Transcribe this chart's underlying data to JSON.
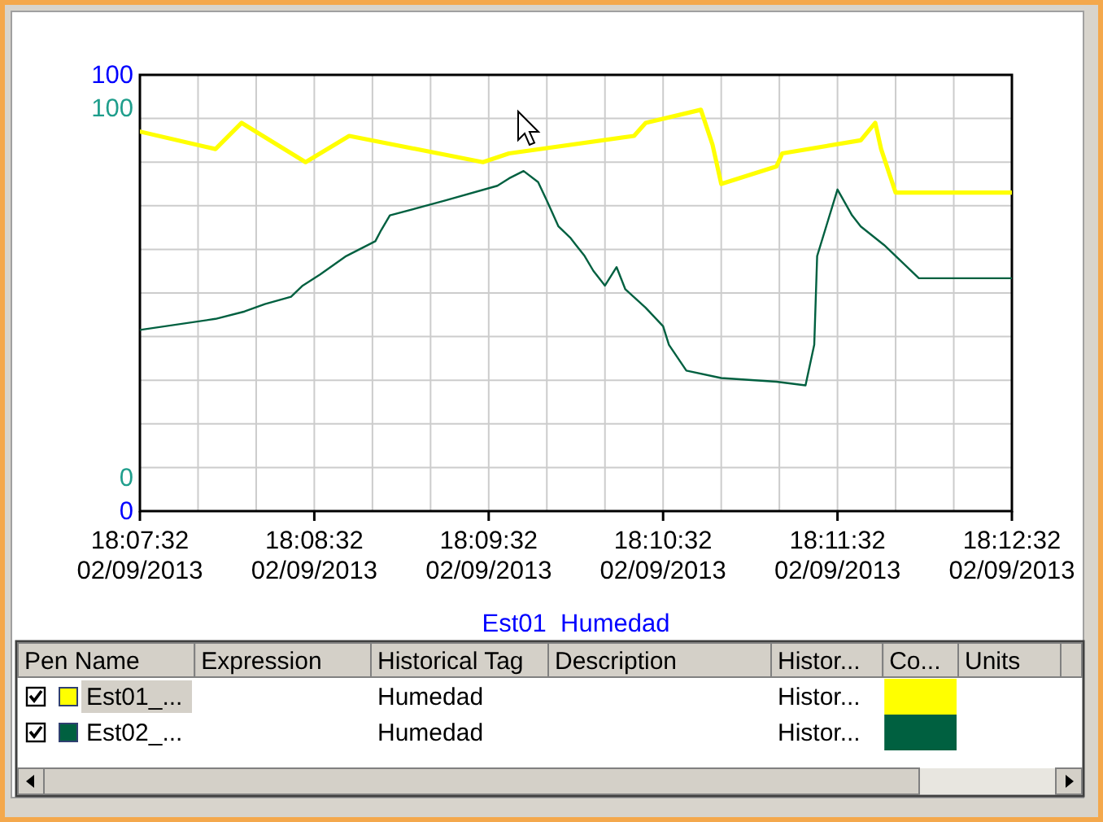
{
  "chart_data": {
    "type": "line",
    "xlim": [
      "2013-09-02T18:07:32",
      "2013-09-02T18:12:32"
    ],
    "xticks": [
      {
        "value": "2013-09-02T18:07:32",
        "label": "18:07:32\n02/09/2013"
      },
      {
        "value": "2013-09-02T18:07:52",
        "label": null
      },
      {
        "value": "2013-09-02T18:08:12",
        "label": null
      },
      {
        "value": "2013-09-02T18:08:32",
        "label": "18:08:32\n02/09/2013"
      },
      {
        "value": "2013-09-02T18:08:52",
        "label": null
      },
      {
        "value": "2013-09-02T18:09:12",
        "label": null
      },
      {
        "value": "2013-09-02T18:09:32",
        "label": "18:09:32\n02/09/2013"
      },
      {
        "value": "2013-09-02T18:09:52",
        "label": null
      },
      {
        "value": "2013-09-02T18:10:12",
        "label": null
      },
      {
        "value": "2013-09-02T18:10:32",
        "label": "18:10:32\n02/09/2013"
      },
      {
        "value": "2013-09-02T18:10:52",
        "label": null
      },
      {
        "value": "2013-09-02T18:11:12",
        "label": null
      },
      {
        "value": "2013-09-02T18:11:32",
        "label": "18:11:32\n02/09/2013"
      },
      {
        "value": "2013-09-02T18:11:52",
        "label": null
      },
      {
        "value": "2013-09-02T18:12:12",
        "label": null
      },
      {
        "value": "2013-09-02T18:12:32",
        "label": "18:12:32\n02/09/2013"
      }
    ],
    "ylim": [
      0,
      100
    ],
    "yticks": [
      0,
      {
        "value": 10,
        "label": null
      },
      {
        "value": 20,
        "label": null
      },
      {
        "value": 30,
        "label": null
      },
      {
        "value": 40,
        "label": null
      },
      {
        "value": 50,
        "label": null
      },
      {
        "value": 60,
        "label": null
      },
      {
        "value": 70,
        "label": null
      },
      {
        "value": 80,
        "label": null
      },
      {
        "value": 90,
        "label": null
      },
      100
    ],
    "y2lim": [
      -9,
      109
    ],
    "y2ticks": [
      0,
      100
    ],
    "grid": true,
    "legend": "bottom",
    "annotations": [
      "Est01  Humedad",
      "Pen Name",
      "Expression",
      "Historical Tag",
      "Description",
      "Histor...",
      "Co...",
      "Units",
      "Humedad",
      "Histor...",
      "Humedad",
      "Histor..."
    ],
    "series": [
      {
        "name": "Est01_...",
        "color": "#ffff00",
        "x": [
          "2013-09-02T18:07:32",
          "2013-09-02T18:07:58",
          "2013-09-02T18:08:07",
          "2013-09-02T18:08:29",
          "2013-09-02T18:08:44",
          "2013-09-02T18:09:30",
          "2013-09-02T18:09:39",
          "2013-09-02T18:10:22",
          "2013-09-02T18:10:26",
          "2013-09-02T18:10:45",
          "2013-09-02T18:10:49",
          "2013-09-02T18:10:52",
          "2013-09-02T18:11:11",
          "2013-09-02T18:11:13",
          "2013-09-02T18:11:40",
          "2013-09-02T18:11:45",
          "2013-09-02T18:11:47",
          "2013-09-02T18:11:52",
          "2013-09-02T18:12:32"
        ],
        "values": [
          87,
          83,
          89,
          80,
          86,
          80,
          82,
          86,
          89,
          92,
          84,
          75,
          79,
          82,
          85,
          89,
          83,
          73,
          73
        ]
      },
      {
        "name": "Est02_...",
        "color": "#006040",
        "axis": "y2",
        "x": [
          "2013-09-02T18:07:32",
          "2013-09-02T18:07:58",
          "2013-09-02T18:08:08",
          "2013-09-02T18:08:15",
          "2013-09-02T18:08:24",
          "2013-09-02T18:08:28",
          "2013-09-02T18:08:34",
          "2013-09-02T18:08:43",
          "2013-09-02T18:08:53",
          "2013-09-02T18:08:55",
          "2013-09-02T18:08:58",
          "2013-09-02T18:09:17",
          "2013-09-02T18:09:35",
          "2013-09-02T18:09:39",
          "2013-09-02T18:09:44",
          "2013-09-02T18:09:49",
          "2013-09-02T18:09:52",
          "2013-09-02T18:09:56",
          "2013-09-02T18:10:00",
          "2013-09-02T18:10:02",
          "2013-09-02T18:10:05",
          "2013-09-02T18:10:08",
          "2013-09-02T18:10:12",
          "2013-09-02T18:10:16",
          "2013-09-02T18:10:19",
          "2013-09-02T18:10:26",
          "2013-09-02T18:10:32",
          "2013-09-02T18:10:34",
          "2013-09-02T18:10:40",
          "2013-09-02T18:10:52",
          "2013-09-02T18:11:11",
          "2013-09-02T18:11:21",
          "2013-09-02T18:11:24",
          "2013-09-02T18:11:25",
          "2013-09-02T18:11:32",
          "2013-09-02T18:11:37",
          "2013-09-02T18:11:40",
          "2013-09-02T18:11:48",
          "2013-09-02T18:12:00",
          "2013-09-02T18:12:32"
        ],
        "values": [
          40,
          43,
          45,
          47,
          49,
          52,
          55,
          60,
          64,
          67,
          71,
          75,
          79,
          81,
          83,
          80,
          75,
          68,
          65,
          63,
          60,
          56,
          52,
          57,
          51,
          46,
          41,
          36,
          29,
          27,
          26,
          25,
          36,
          60,
          78,
          71,
          68,
          63,
          54,
          54
        ]
      }
    ]
  }
}
